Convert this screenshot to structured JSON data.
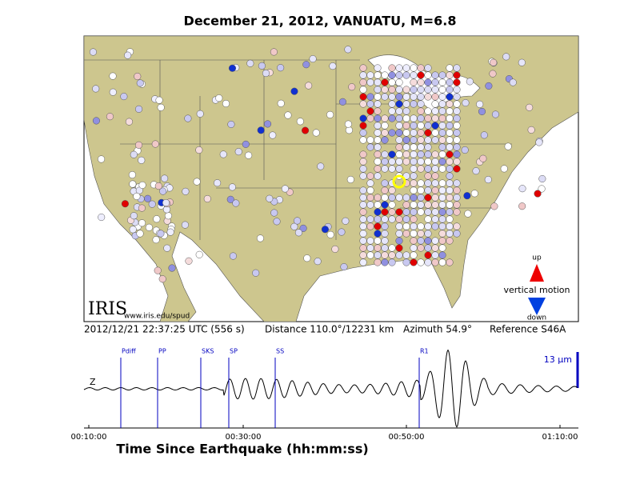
{
  "title": "December 21, 2012, VANUATU, M=6.8",
  "map": {
    "logo": "IRIS",
    "url": "www.iris.edu/spud",
    "legend": {
      "up": "up",
      "label": "vertical motion",
      "down": "down"
    }
  },
  "info": {
    "time": "2012/12/21 22:37:25 UTC (556 s)",
    "distance": "Distance 110.0°/12231 km",
    "azimuth": "Azimuth  54.9°",
    "reference": "Reference S46A"
  },
  "seismogram": {
    "component": "Z",
    "scale": "13 µm",
    "phases": [
      "Pdiff",
      "PP",
      "SKS",
      "SP",
      "SS",
      "R1"
    ],
    "x_ticks": [
      "00:10:00",
      "00:30:00",
      "00:50:00",
      "01:10:00"
    ],
    "x_label": "Time Since Earthquake (hh:mm:ss)"
  }
}
